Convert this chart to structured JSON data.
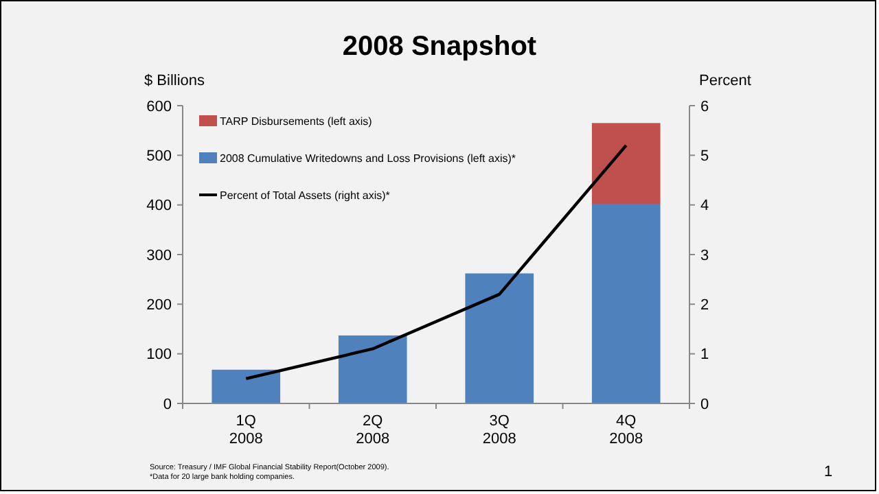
{
  "chart_data": {
    "type": "bar",
    "title": "2008 Snapshot",
    "ylabel": "$ Billions",
    "y2label": "Percent",
    "categories": [
      "1Q\n2008",
      "2Q\n2008",
      "3Q\n2008",
      "4Q\n2008"
    ],
    "stacked": true,
    "series": [
      {
        "name": "2008 Cumulative Writedowns and Loss Provisions (left axis)*",
        "color": "#4f81bd",
        "values": [
          68,
          137,
          262,
          401
        ]
      },
      {
        "name": "TARP Disbursements (left axis)",
        "color": "#c0504d",
        "values": [
          null,
          null,
          null,
          164
        ]
      },
      {
        "name": "Percent of Total Assets (right axis)*",
        "type": "line",
        "axis": "y2",
        "color": "#000000",
        "values": [
          0.5,
          1.1,
          2.2,
          5.2
        ],
        "marker": "none",
        "line_style": "solid"
      }
    ],
    "ylim": [
      0,
      600
    ],
    "yticks": [
      0,
      100,
      200,
      300,
      400,
      500,
      600
    ],
    "y2lim": [
      0,
      6
    ],
    "y2ticks": [
      0,
      1,
      2,
      3,
      4,
      5,
      6
    ],
    "grid": false,
    "legend": "top left",
    "annotations": [
      "Source: Treasury / IMF Global Financial Stability Report(October 2009).",
      "*Data for 20 large bank holding companies.",
      "1"
    ]
  }
}
